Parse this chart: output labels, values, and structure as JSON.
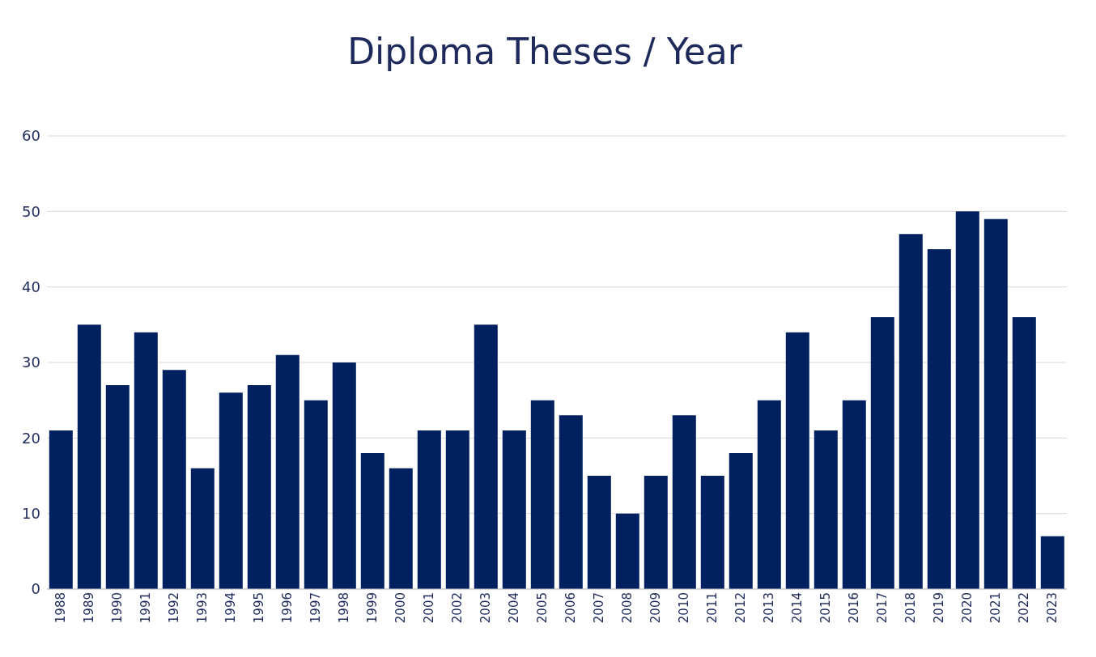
{
  "chart_data": {
    "type": "bar",
    "title": "Diploma Theses / Year",
    "categories": [
      "1988",
      "1989",
      "1990",
      "1991",
      "1992",
      "1993",
      "1994",
      "1995",
      "1996",
      "1997",
      "1998",
      "1999",
      "2000",
      "2001",
      "2002",
      "2003",
      "2004",
      "2005",
      "2006",
      "2007",
      "2008",
      "2009",
      "2010",
      "2011",
      "2012",
      "2013",
      "2014",
      "2015",
      "2016",
      "2017",
      "2018",
      "2019",
      "2020",
      "2021",
      "2022",
      "2023"
    ],
    "values": [
      21,
      35,
      27,
      34,
      29,
      16,
      26,
      27,
      31,
      25,
      30,
      18,
      16,
      21,
      21,
      35,
      21,
      25,
      23,
      15,
      10,
      15,
      23,
      15,
      18,
      25,
      34,
      21,
      25,
      36,
      47,
      45,
      50,
      49,
      36,
      7
    ],
    "color": "#002060",
    "ylim": [
      0,
      60
    ],
    "yticks": [
      0,
      10,
      20,
      30,
      40,
      50,
      60
    ],
    "grid": "y"
  }
}
